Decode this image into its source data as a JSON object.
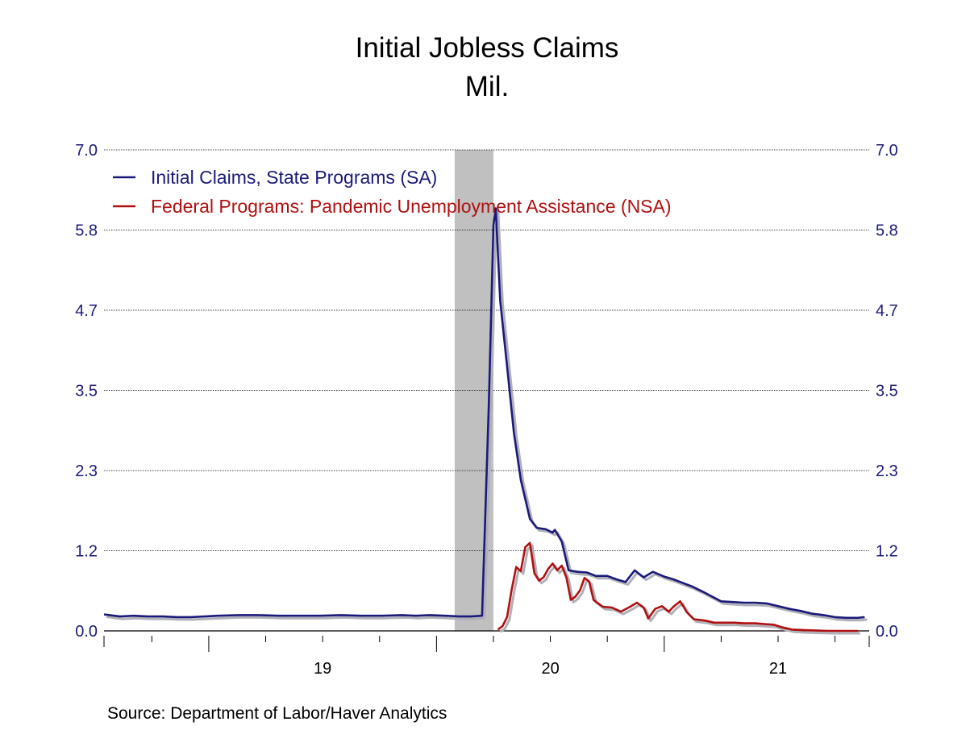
{
  "chart_data": {
    "type": "line",
    "title": "Initial Jobless Claims",
    "subtitle": "Mil.",
    "source": "Source:  Department of Labor/Haver Analytics",
    "ylim": [
      0,
      7.0
    ],
    "y_ticks": [
      "7.0",
      "5.8",
      "4.7",
      "3.5",
      "2.3",
      "1.2",
      "0.0"
    ],
    "y_tick_values": [
      7.0,
      5.833,
      4.667,
      3.5,
      2.333,
      1.167,
      0.0
    ],
    "x_range": [
      2018.54,
      2021.9
    ],
    "x_labels": [
      {
        "text": "19",
        "x": 2019.5
      },
      {
        "text": "20",
        "x": 2020.5
      },
      {
        "text": "21",
        "x": 2021.5
      }
    ],
    "grid": true,
    "legend_position": "top-left",
    "recession_band": [
      2020.08,
      2020.25
    ],
    "recession_color": "#c0c0c0",
    "series": [
      {
        "name": "Initial Claims, State Programs (SA)",
        "color": "#1a1a7a",
        "points": [
          [
            2018.54,
            0.24
          ],
          [
            2018.61,
            0.21
          ],
          [
            2018.67,
            0.22
          ],
          [
            2018.73,
            0.21
          ],
          [
            2018.8,
            0.21
          ],
          [
            2018.86,
            0.2
          ],
          [
            2018.92,
            0.2
          ],
          [
            2018.98,
            0.21
          ],
          [
            2019.04,
            0.22
          ],
          [
            2019.13,
            0.23
          ],
          [
            2019.22,
            0.23
          ],
          [
            2019.31,
            0.22
          ],
          [
            2019.4,
            0.22
          ],
          [
            2019.49,
            0.22
          ],
          [
            2019.58,
            0.23
          ],
          [
            2019.67,
            0.22
          ],
          [
            2019.76,
            0.22
          ],
          [
            2019.85,
            0.23
          ],
          [
            2019.91,
            0.22
          ],
          [
            2019.97,
            0.23
          ],
          [
            2020.04,
            0.22
          ],
          [
            2020.1,
            0.21
          ],
          [
            2020.15,
            0.21
          ],
          [
            2020.2,
            0.22
          ],
          [
            2020.23,
            3.31
          ],
          [
            2020.25,
            5.9
          ],
          [
            2020.26,
            6.15
          ],
          [
            2020.28,
            4.8
          ],
          [
            2020.31,
            3.85
          ],
          [
            2020.34,
            2.88
          ],
          [
            2020.37,
            2.2
          ],
          [
            2020.41,
            1.63
          ],
          [
            2020.44,
            1.5
          ],
          [
            2020.48,
            1.48
          ],
          [
            2020.51,
            1.43
          ],
          [
            2020.52,
            1.47
          ],
          [
            2020.55,
            1.3
          ],
          [
            2020.58,
            0.88
          ],
          [
            2020.62,
            0.86
          ],
          [
            2020.66,
            0.85
          ],
          [
            2020.7,
            0.8
          ],
          [
            2020.75,
            0.8
          ],
          [
            2020.79,
            0.75
          ],
          [
            2020.83,
            0.71
          ],
          [
            2020.87,
            0.88
          ],
          [
            2020.91,
            0.78
          ],
          [
            2020.95,
            0.86
          ],
          [
            2021.0,
            0.79
          ],
          [
            2021.04,
            0.75
          ],
          [
            2021.08,
            0.7
          ],
          [
            2021.12,
            0.65
          ],
          [
            2021.17,
            0.57
          ],
          [
            2021.21,
            0.5
          ],
          [
            2021.25,
            0.43
          ],
          [
            2021.3,
            0.42
          ],
          [
            2021.35,
            0.41
          ],
          [
            2021.4,
            0.41
          ],
          [
            2021.45,
            0.4
          ],
          [
            2021.5,
            0.36
          ],
          [
            2021.55,
            0.32
          ],
          [
            2021.6,
            0.29
          ],
          [
            2021.65,
            0.25
          ],
          [
            2021.7,
            0.23
          ],
          [
            2021.75,
            0.2
          ],
          [
            2021.8,
            0.19
          ],
          [
            2021.85,
            0.19
          ],
          [
            2021.88,
            0.2
          ]
        ]
      },
      {
        "name": "Federal Programs: Pandemic Unemployment Assistance (NSA)",
        "color": "#b01010",
        "points": [
          [
            2020.27,
            0.02
          ],
          [
            2020.29,
            0.07
          ],
          [
            2020.31,
            0.2
          ],
          [
            2020.33,
            0.6
          ],
          [
            2020.35,
            0.93
          ],
          [
            2020.37,
            0.87
          ],
          [
            2020.39,
            1.22
          ],
          [
            2020.41,
            1.28
          ],
          [
            2020.43,
            0.84
          ],
          [
            2020.45,
            0.73
          ],
          [
            2020.47,
            0.78
          ],
          [
            2020.49,
            0.9
          ],
          [
            2020.51,
            0.98
          ],
          [
            2020.53,
            0.88
          ],
          [
            2020.55,
            0.95
          ],
          [
            2020.57,
            0.78
          ],
          [
            2020.59,
            0.45
          ],
          [
            2020.61,
            0.5
          ],
          [
            2020.63,
            0.59
          ],
          [
            2020.65,
            0.77
          ],
          [
            2020.67,
            0.72
          ],
          [
            2020.69,
            0.45
          ],
          [
            2020.73,
            0.35
          ],
          [
            2020.77,
            0.34
          ],
          [
            2020.81,
            0.28
          ],
          [
            2020.85,
            0.35
          ],
          [
            2020.88,
            0.41
          ],
          [
            2020.91,
            0.34
          ],
          [
            2020.93,
            0.18
          ],
          [
            2020.96,
            0.32
          ],
          [
            2020.99,
            0.36
          ],
          [
            2021.02,
            0.28
          ],
          [
            2021.04,
            0.35
          ],
          [
            2021.07,
            0.43
          ],
          [
            2021.1,
            0.27
          ],
          [
            2021.13,
            0.17
          ],
          [
            2021.18,
            0.15
          ],
          [
            2021.22,
            0.12
          ],
          [
            2021.27,
            0.12
          ],
          [
            2021.31,
            0.12
          ],
          [
            2021.35,
            0.11
          ],
          [
            2021.4,
            0.11
          ],
          [
            2021.44,
            0.1
          ],
          [
            2021.48,
            0.09
          ],
          [
            2021.52,
            0.05
          ],
          [
            2021.56,
            0.02
          ],
          [
            2021.62,
            0.01
          ],
          [
            2021.72,
            0.0
          ],
          [
            2021.85,
            0.0
          ]
        ]
      }
    ]
  },
  "colors": {
    "axis_text": "#1a1a7a",
    "gridline": "#000000",
    "shadow": "#b0b0b8"
  }
}
